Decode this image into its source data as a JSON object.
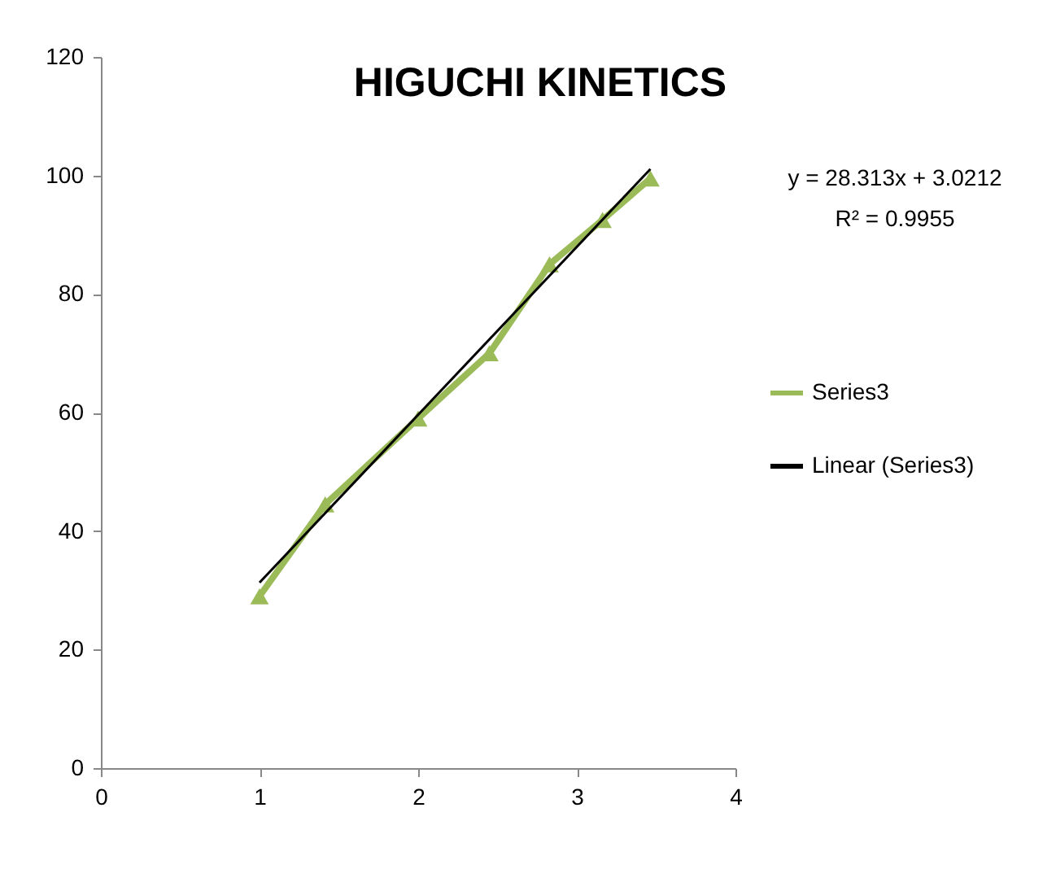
{
  "chart_data": {
    "type": "line",
    "title": "HIGUCHI KINETICS",
    "x": [
      1,
      1.414,
      2,
      2.449,
      2.828,
      3.162,
      3.464
    ],
    "series": [
      {
        "name": "Series3",
        "color": "#9bbb59",
        "values": [
          29,
          44.5,
          59,
          70,
          85,
          92.5,
          99.5
        ],
        "marker": "triangle"
      },
      {
        "name": "Linear (Series3)",
        "color": "#000000",
        "type": "line",
        "x": [
          1,
          3.464
        ],
        "values": [
          31.3,
          101.1
        ],
        "marker": "none"
      }
    ],
    "xlim": [
      0,
      4
    ],
    "xticks": [
      0,
      1,
      2,
      3,
      4
    ],
    "ylim": [
      0,
      120
    ],
    "yticks": [
      0,
      20,
      40,
      60,
      80,
      100,
      120
    ],
    "grid": false,
    "legend": "right",
    "annotations": [
      "y = 28.313x + 3.0212",
      "R² = 0.9955"
    ]
  }
}
